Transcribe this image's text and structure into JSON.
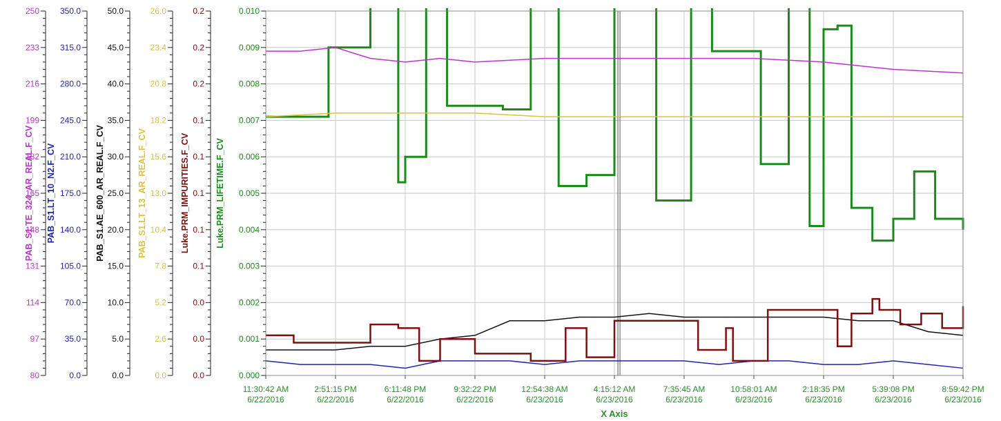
{
  "chart_data": {
    "type": "line",
    "x_axis": {
      "title": "X Axis",
      "color": "#2e8b2e",
      "ticks": [
        {
          "time": "11:30:42 AM",
          "date": "6/22/2016"
        },
        {
          "time": "2:51:15 PM",
          "date": "6/22/2016"
        },
        {
          "time": "6:11:48 PM",
          "date": "6/22/2016"
        },
        {
          "time": "9:32:22 PM",
          "date": "6/22/2016"
        },
        {
          "time": "12:54:38 AM",
          "date": "6/23/2016"
        },
        {
          "time": "4:15:12 AM",
          "date": "6/23/2016"
        },
        {
          "time": "7:35:45 AM",
          "date": "6/23/2016"
        },
        {
          "time": "10:58:01 AM",
          "date": "6/23/2016"
        },
        {
          "time": "2:18:35 PM",
          "date": "6/23/2016"
        },
        {
          "time": "5:39:08 PM",
          "date": "6/23/2016"
        },
        {
          "time": "8:59:42 PM",
          "date": "6/23/2016"
        }
      ]
    },
    "y_axes": [
      {
        "id": "te",
        "title": "PAB_S1.TE_324_AR_REAL.F_CV",
        "color": "#bb33cc",
        "ticks": [
          "250",
          "233",
          "216",
          "199",
          "182",
          "165",
          "148",
          "131",
          "114",
          "97",
          "80"
        ]
      },
      {
        "id": "n2",
        "title": "PAB_S1.LT_10_N2.F_CV",
        "color": "#2222aa",
        "ticks": [
          "350.0",
          "315.0",
          "280.0",
          "245.0",
          "210.0",
          "175.0",
          "140.0",
          "105.0",
          "70.0",
          "35.0",
          "0.0"
        ]
      },
      {
        "id": "ae",
        "title": "PAB_S1.AE_600_AR_REAL.F_CV",
        "color": "#111111",
        "ticks": [
          "50.0",
          "45.0",
          "40.0",
          "35.0",
          "30.0",
          "25.0",
          "20.0",
          "15.0",
          "10.0",
          "5.0",
          "0.0"
        ]
      },
      {
        "id": "lt13",
        "title": "PAB_S1.LT_13_AR_REAL.F_CV",
        "color": "#d9c43a",
        "ticks": [
          "26.0",
          "23.4",
          "20.8",
          "18.2",
          "15.6",
          "13.0",
          "10.4",
          "7.8",
          "5.2",
          "2.6",
          "0.0"
        ]
      },
      {
        "id": "imp",
        "title": "Luke.PRM_IMPURITIES.F_CV",
        "color": "#7a1010",
        "ticks": [
          "0.2",
          "0.2",
          "0.2",
          "0.1",
          "0.1",
          "0.1",
          "0.1",
          "0.1",
          "0.0",
          "0.0",
          "0.0"
        ]
      },
      {
        "id": "life",
        "title": "Luke.PRM_LIFETIME.F_CV",
        "color": "#1a8a1a",
        "ticks": [
          "0.010",
          "0.009",
          "0.008",
          "0.007",
          "0.006",
          "0.005",
          "0.004",
          "0.003",
          "0.002",
          "0.001",
          "0.000"
        ]
      }
    ],
    "grid": true,
    "series": [
      {
        "name": "Luke.PRM_LIFETIME.F_CV",
        "axis": "life",
        "color": "#1a8a1a",
        "width": 3,
        "step": true,
        "x": [
          0,
          0.9,
          1.5,
          1.9,
          2.0,
          2.3,
          2.6,
          3.4,
          3.8,
          4.2,
          4.6,
          5.0,
          5.6,
          6.1,
          6.4,
          7.1,
          7.5,
          7.8,
          8.0,
          8.2,
          8.4,
          8.7,
          9.0,
          9.3,
          9.6,
          10.0
        ],
        "y": [
          0.0071,
          0.009,
          0.0103,
          0.0053,
          0.006,
          0.0103,
          0.0074,
          0.0073,
          0.0103,
          0.0052,
          0.0055,
          0.0103,
          0.0048,
          0.0103,
          0.0089,
          0.0058,
          0.0103,
          0.0041,
          0.0095,
          0.0096,
          0.0046,
          0.0037,
          0.0043,
          0.0056,
          0.0043,
          0.004
        ]
      },
      {
        "name": "PAB_S1.TE_324_AR_REAL.F_CV",
        "axis": "life",
        "color": "#bb33cc",
        "width": 1.5,
        "step": false,
        "x": [
          0,
          0.5,
          1.0,
          1.5,
          2.0,
          2.5,
          3.0,
          4.0,
          5.0,
          6.0,
          7.0,
          8.0,
          9.0,
          10.0
        ],
        "y": [
          0.0089,
          0.0089,
          0.009,
          0.0087,
          0.0086,
          0.0087,
          0.0086,
          0.0087,
          0.0087,
          0.0087,
          0.0087,
          0.0086,
          0.0084,
          0.0083
        ]
      },
      {
        "name": "PAB_S1.LT_13_AR_REAL.F_CV",
        "axis": "life",
        "color": "#d9c43a",
        "width": 1.5,
        "step": false,
        "x": [
          0,
          1.0,
          2.0,
          3.0,
          4.0,
          5.0,
          6.0,
          7.0,
          8.0,
          9.0,
          10.0
        ],
        "y": [
          0.0071,
          0.0072,
          0.0072,
          0.0072,
          0.0071,
          0.0071,
          0.0071,
          0.0071,
          0.0071,
          0.0071,
          0.0071
        ]
      },
      {
        "name": "PAB_S1.AE_600_AR_REAL.F_CV",
        "axis": "life",
        "color": "#111111",
        "width": 1.5,
        "step": false,
        "x": [
          0,
          0.5,
          1.0,
          1.5,
          2.0,
          2.5,
          3.0,
          3.5,
          4.0,
          4.5,
          5.0,
          5.5,
          6.0,
          6.5,
          7.0,
          7.5,
          8.0,
          8.5,
          9.0,
          9.5,
          10.0
        ],
        "y": [
          0.0007,
          0.0007,
          0.0007,
          0.0008,
          0.0008,
          0.001,
          0.0011,
          0.0015,
          0.0015,
          0.0016,
          0.0016,
          0.0017,
          0.0016,
          0.0016,
          0.0016,
          0.0016,
          0.0016,
          0.0015,
          0.0015,
          0.0012,
          0.0011
        ]
      },
      {
        "name": "PAB_S1.LT_10_N2.F_CV",
        "axis": "life",
        "color": "#2222aa",
        "width": 1.5,
        "step": false,
        "x": [
          0,
          0.5,
          1.0,
          1.5,
          2.0,
          2.5,
          3.0,
          3.5,
          4.0,
          4.5,
          5.0,
          5.5,
          6.0,
          6.5,
          7.0,
          7.5,
          8.0,
          8.5,
          9.0,
          9.5,
          10.0
        ],
        "y": [
          0.0004,
          0.0003,
          0.0003,
          0.0003,
          0.0002,
          0.0004,
          0.0004,
          0.0004,
          0.0003,
          0.0004,
          0.0004,
          0.0004,
          0.0004,
          0.0003,
          0.0004,
          0.0004,
          0.0003,
          0.0003,
          0.0004,
          0.0003,
          0.0002
        ]
      },
      {
        "name": "Luke.PRM_IMPURITIES.F_CV",
        "axis": "life",
        "color": "#7a1010",
        "width": 2.5,
        "step": true,
        "x": [
          0,
          0.4,
          1.5,
          1.6,
          1.9,
          2.2,
          2.5,
          3.0,
          3.8,
          4.3,
          4.6,
          5.0,
          5.6,
          6.2,
          6.6,
          6.7,
          6.9,
          7.2,
          8.2,
          8.4,
          8.7,
          8.8,
          9.1,
          9.4,
          9.7,
          10.0
        ],
        "y": [
          0.0011,
          0.0009,
          0.0014,
          0.0014,
          0.0013,
          0.0004,
          0.001,
          0.0006,
          0.0004,
          0.0013,
          0.0005,
          0.0015,
          0.0015,
          0.0007,
          0.0013,
          0.0004,
          0.0004,
          0.0018,
          0.0008,
          0.0017,
          0.0021,
          0.0018,
          0.0014,
          0.0017,
          0.0013,
          0.0019
        ]
      }
    ]
  }
}
